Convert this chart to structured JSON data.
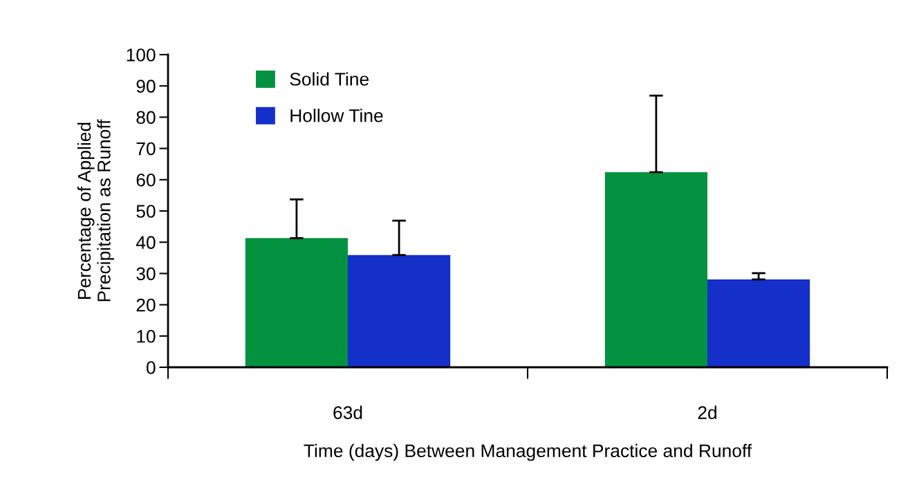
{
  "chart_data": {
    "type": "bar",
    "xlabel": "Time (days) Between Management Practice and Runoff",
    "ylabel": "Percentage of Applied\nPrecipitation as Runoff",
    "categories": [
      "63d",
      "2d"
    ],
    "series": [
      {
        "name": "Solid Tine",
        "color": "#03923f",
        "values": [
          41.3,
          62.4
        ],
        "errors": [
          [
            41.3,
            53.7
          ],
          [
            62.4,
            86.9
          ]
        ]
      },
      {
        "name": "Hollow Tine",
        "color": "#1530c8",
        "values": [
          35.9,
          28.1
        ],
        "errors": [
          [
            35.9,
            46.9
          ],
          [
            28.1,
            30.1
          ]
        ]
      }
    ],
    "ylim": [
      0,
      100
    ],
    "yticks": [
      0,
      10,
      20,
      30,
      40,
      50,
      60,
      70,
      80,
      90,
      100
    ],
    "grid": false,
    "legend": "top left"
  }
}
